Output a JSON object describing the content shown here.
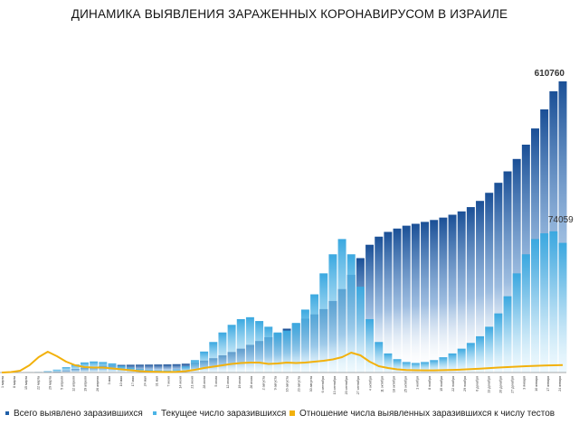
{
  "chart_data": {
    "type": "bar",
    "title": "ДИНАМИКА ВЫЯВЛЕНИЯ ЗАРАЖЕННЫХ КОРОНАВИРУСОМ В ИЗРАИЛЕ",
    "series": [
      {
        "name": "Всего выявлено заразившихся",
        "kind": "bar",
        "color": "#1f5fa8",
        "values": [
          0,
          2,
          10,
          50,
          200,
          800,
          2000,
          4500,
          7500,
          10000,
          12000,
          14000,
          15500,
          16000,
          16300,
          16500,
          16600,
          16800,
          17000,
          17500,
          18500,
          21000,
          25000,
          30000,
          36000,
          43000,
          50000,
          58000,
          66000,
          74000,
          82000,
          92000,
          103000,
          113000,
          122000,
          133000,
          150000,
          175000,
          205000,
          240000,
          268000,
          285000,
          295000,
          302000,
          308000,
          312000,
          316000,
          320000,
          325000,
          331000,
          338000,
          347000,
          360000,
          377000,
          398000,
          422000,
          448000,
          478000,
          512000,
          552000,
          590000,
          610760
        ]
      },
      {
        "name": "Текущее число заразившихся",
        "kind": "bar",
        "color": "#4bb4e6",
        "values": [
          0,
          2,
          10,
          45,
          180,
          700,
          1500,
          2800,
          4200,
          5300,
          5800,
          5500,
          4800,
          3500,
          2500,
          1800,
          1500,
          1200,
          1100,
          1600,
          3200,
          6500,
          11000,
          16000,
          21000,
          25000,
          28000,
          29000,
          27000,
          24000,
          21000,
          22000,
          26000,
          33000,
          41000,
          52000,
          62000,
          70000,
          62000,
          45000,
          28000,
          16000,
          10000,
          7000,
          5500,
          5000,
          5500,
          6500,
          8000,
          10000,
          12500,
          15500,
          19000,
          24000,
          31000,
          40000,
          52000,
          62000,
          70000,
          73000,
          74059,
          68000
        ]
      },
      {
        "name": "Отношение числа выявленных заразившихся к числу тестов",
        "kind": "line",
        "color": "#f2b10c",
        "values": [
          0,
          0.5,
          2,
          8,
          17,
          23,
          18,
          12,
          8,
          6,
          5.5,
          5.5,
          4.5,
          3.5,
          2.5,
          1.5,
          1,
          0.8,
          0.5,
          0.7,
          1.5,
          3,
          5,
          6.5,
          8,
          9.5,
          10.5,
          11,
          11,
          9.5,
          10,
          11,
          10.5,
          11,
          12,
          13,
          14.5,
          17,
          22,
          19,
          12,
          7,
          5,
          3.5,
          2.8,
          2.5,
          2.4,
          2.4,
          2.6,
          2.9,
          3.2,
          3.7,
          4.3,
          4.9,
          5.5,
          6,
          6.5,
          7,
          7.4,
          7.7,
          8,
          8.3
        ]
      }
    ],
    "annotations": {
      "total_max": "610760",
      "active_max": "74059"
    },
    "x_tick_labels": [
      "1 марта",
      "8 марта",
      "15 марта",
      "22 марта",
      "29 марта",
      "5 апреля",
      "12 апреля",
      "19 апреля",
      "26 апреля",
      "3 мая",
      "10 мая",
      "17 мая",
      "24 мая",
      "31 мая",
      "7 июня",
      "14 июня",
      "21 июня",
      "28 июня",
      "5 июля",
      "12 июля",
      "19 июля",
      "26 июля",
      "2 августа",
      "9 августа",
      "16 августа",
      "23 августа",
      "30 августа",
      "6 сентября",
      "13 сентября",
      "20 сентября",
      "27 сентября",
      "4 октября",
      "11 октября",
      "18 октября",
      "25 октября",
      "1 ноября",
      "8 ноября",
      "15 ноября",
      "22 ноября",
      "29 ноября",
      "6 декабря",
      "13 декабря",
      "20 декабря",
      "27 декабря",
      "3 января",
      "10 января",
      "17 января",
      "24 января"
    ],
    "legend": [
      {
        "label": "Всего выявлено заразившихся",
        "color": "#1f5fa8"
      },
      {
        "label": "Текущее число заразившихся",
        "color": "#4bb4e6"
      },
      {
        "label": "Отношение числа выявленных заразившихся к числу тестов",
        "color": "#f2b10c"
      }
    ],
    "legend_position": "bottom",
    "grid": false
  }
}
